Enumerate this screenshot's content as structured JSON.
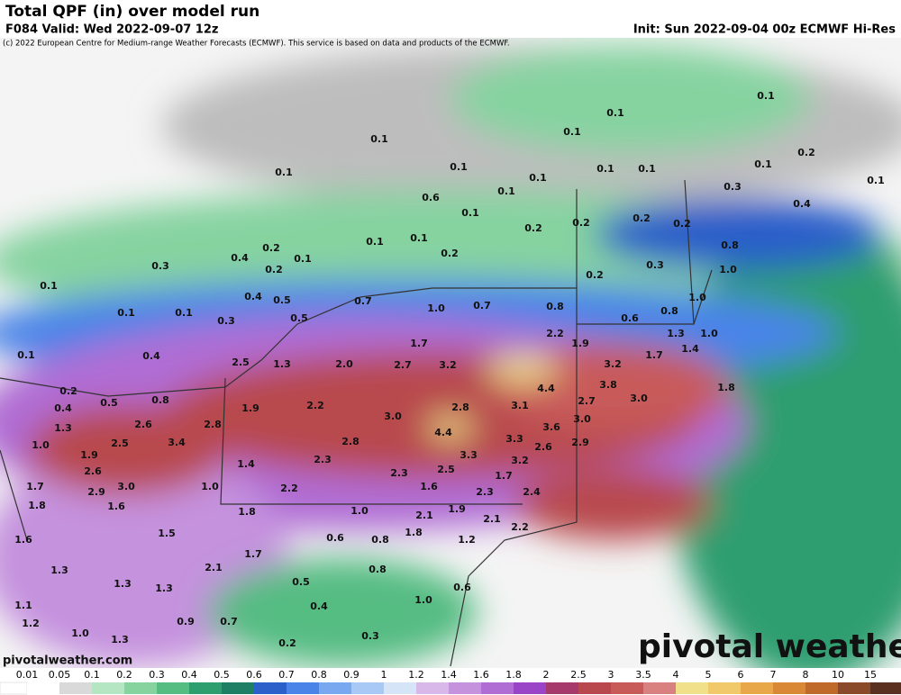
{
  "header": {
    "title": "Total QPF (in) over model run",
    "valid": "F084 Valid: Wed 2022-09-07 12z",
    "init": "Init: Sun 2022-09-04 00z ECMWF Hi-Res",
    "copyright": "(c) 2022 European Centre for Medium-range Weather Forecasts (ECMWF). This service is based on data and products of the ECMWF."
  },
  "labels": [
    "0.1",
    "0.1",
    "0.1",
    "0.1",
    "0.1",
    "0.1",
    "0.1",
    "0.1",
    "0.1",
    "0.1",
    "0.2",
    "0.1",
    "0.3",
    "0.6",
    "0.1",
    "0.1",
    "0.2",
    "0.2",
    "0.2",
    "0.4",
    "0.2",
    "0.1",
    "0.1",
    "0.2",
    "0.8",
    "0.2",
    "0.4",
    "0.1",
    "0.3",
    "0.2",
    "0.2",
    "0.3",
    "1.0",
    "0.1",
    "0.4",
    "0.5",
    "0.7",
    "1.0",
    "1.0",
    "0.7",
    "0.8",
    "0.1",
    "0.1",
    "0.5",
    "0.3",
    "0.6",
    "0.8",
    "2.2",
    "1.9",
    "1.3",
    "1.0",
    "1.7",
    "0.1",
    "0.4",
    "1.7",
    "1.4",
    "2.5",
    "1.3",
    "2.0",
    "2.7",
    "3.2",
    "3.2",
    "0.2",
    "0.5",
    "0.8",
    "4.4",
    "3.8",
    "2.7",
    "3.0",
    "1.8",
    "0.4",
    "1.9",
    "2.2",
    "3.1",
    "2.8",
    "3.0",
    "3.6",
    "3.0",
    "1.3",
    "2.6",
    "2.8",
    "4.4",
    "3.3",
    "2.6",
    "2.9",
    "1.0",
    "1.9",
    "2.5",
    "3.4",
    "2.8",
    "3.3",
    "3.2",
    "2.3",
    "1.4",
    "2.6",
    "2.3",
    "2.5",
    "1.7",
    "1.7",
    "1.0",
    "2.9",
    "3.0",
    "2.2",
    "1.6",
    "2.3",
    "2.4",
    "1.8",
    "1.6",
    "1.8",
    "1.0",
    "2.1",
    "1.9",
    "2.1",
    "2.2",
    "1.5",
    "1.8",
    "1.6",
    "0.6",
    "0.8",
    "1.2",
    "1.7",
    "2.1",
    "1.3",
    "0.8",
    "1.3",
    "0.5",
    "1.3",
    "0.6",
    "1.0",
    "1.1",
    "0.4",
    "1.2",
    "0.9",
    "0.7",
    "1.0",
    "0.3",
    "1.3",
    "0.2"
  ],
  "colorbar": {
    "labels": [
      "0.01",
      "0.05",
      "0.1",
      "0.2",
      "0.3",
      "0.4",
      "0.5",
      "0.6",
      "0.7",
      "0.8",
      "0.9",
      "1",
      "1.2",
      "1.4",
      "1.6",
      "1.8",
      "2",
      "2.5",
      "3",
      "3.5",
      "4",
      "5",
      "6",
      "7",
      "8",
      "10",
      "15"
    ],
    "colors": [
      "#ffffff",
      "#d9d9d9",
      "#b4e6c4",
      "#86d3a0",
      "#55bc82",
      "#2f9e6f",
      "#1f7f64",
      "#2b5fc9",
      "#4a84e8",
      "#78a8f0",
      "#a8c8f5",
      "#d6e4f8",
      "#d8b8e8",
      "#c592de",
      "#b06dd4",
      "#9a44c8",
      "#a63a6a",
      "#b8484e",
      "#c85a5a",
      "#d98080",
      "#f0e08a",
      "#f2c96a",
      "#e8a84a",
      "#d98836",
      "#c06a2a",
      "#8a4a2a",
      "#5a3020"
    ]
  },
  "watermark": "pivotal weather",
  "site": "pivotalweather.com"
}
